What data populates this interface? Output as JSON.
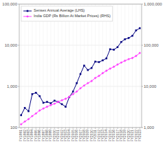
{
  "chart_data": {
    "type": "line",
    "categories": [
      "FY1991",
      "FY1992",
      "FY1993",
      "FY1994",
      "FY1995",
      "FY1996",
      "FY1997",
      "FY1998",
      "FY1999",
      "FY2000",
      "FY2001",
      "FY2002",
      "FY2003",
      "FY2004",
      "FY2005",
      "FY2006",
      "FY2007",
      "FY2008",
      "FY2009",
      "FY2010",
      "FY2011",
      "FY2012",
      "FY2013",
      "FY2014",
      "FY2015",
      "FY2016",
      "FY2017",
      "FY2018",
      "FY2019",
      "FY2020",
      "FY2021",
      "FY2022",
      "FY2023"
    ],
    "series": [
      {
        "name": "Sensex Annual Average (LHS)",
        "color": "#000080",
        "marker": "square",
        "values": [
          200,
          300,
          250,
          650,
          700,
          580,
          400,
          420,
          390,
          450,
          420,
          370,
          320,
          550,
          750,
          1200,
          2000,
          3200,
          2500,
          2800,
          4000,
          3900,
          4300,
          4800,
          8000,
          7800,
          9000,
          12000,
          14000,
          15000,
          17000,
          23000,
          26000
        ]
      },
      {
        "name": "India GDP (Rs Billion At Market Prices) (RHS)",
        "color": "#ff44ff",
        "marker": "diamond",
        "axis": "y2",
        "values": [
          1200,
          1400,
          1600,
          1900,
          2200,
          2600,
          2900,
          3200,
          3500,
          3800,
          4200,
          4600,
          5000,
          5600,
          6500,
          7500,
          9000,
          10500,
          12000,
          13500,
          16000,
          18000,
          21000,
          24000,
          27000,
          30000,
          34000,
          38000,
          42000,
          46000,
          49000,
          55000,
          65000
        ]
      }
    ],
    "log": "y",
    "ylim": [
      100,
      100000
    ],
    "yticks": [
      100,
      {
        "value": 1000,
        "label": "1,000"
      },
      {
        "value": 10000,
        "label": "10,000"
      },
      {
        "value": 100000,
        "label": "100,000"
      }
    ],
    "y2lim": [
      1000,
      1000000
    ],
    "y2ticks": [
      {
        "value": 1000,
        "label": "1,000"
      },
      {
        "value": 10000,
        "label": "10,000"
      },
      {
        "value": 100000,
        "label": "100,000"
      },
      {
        "value": 1000000,
        "label": "1,000,000"
      }
    ],
    "grid": true,
    "legend": "upper left"
  }
}
